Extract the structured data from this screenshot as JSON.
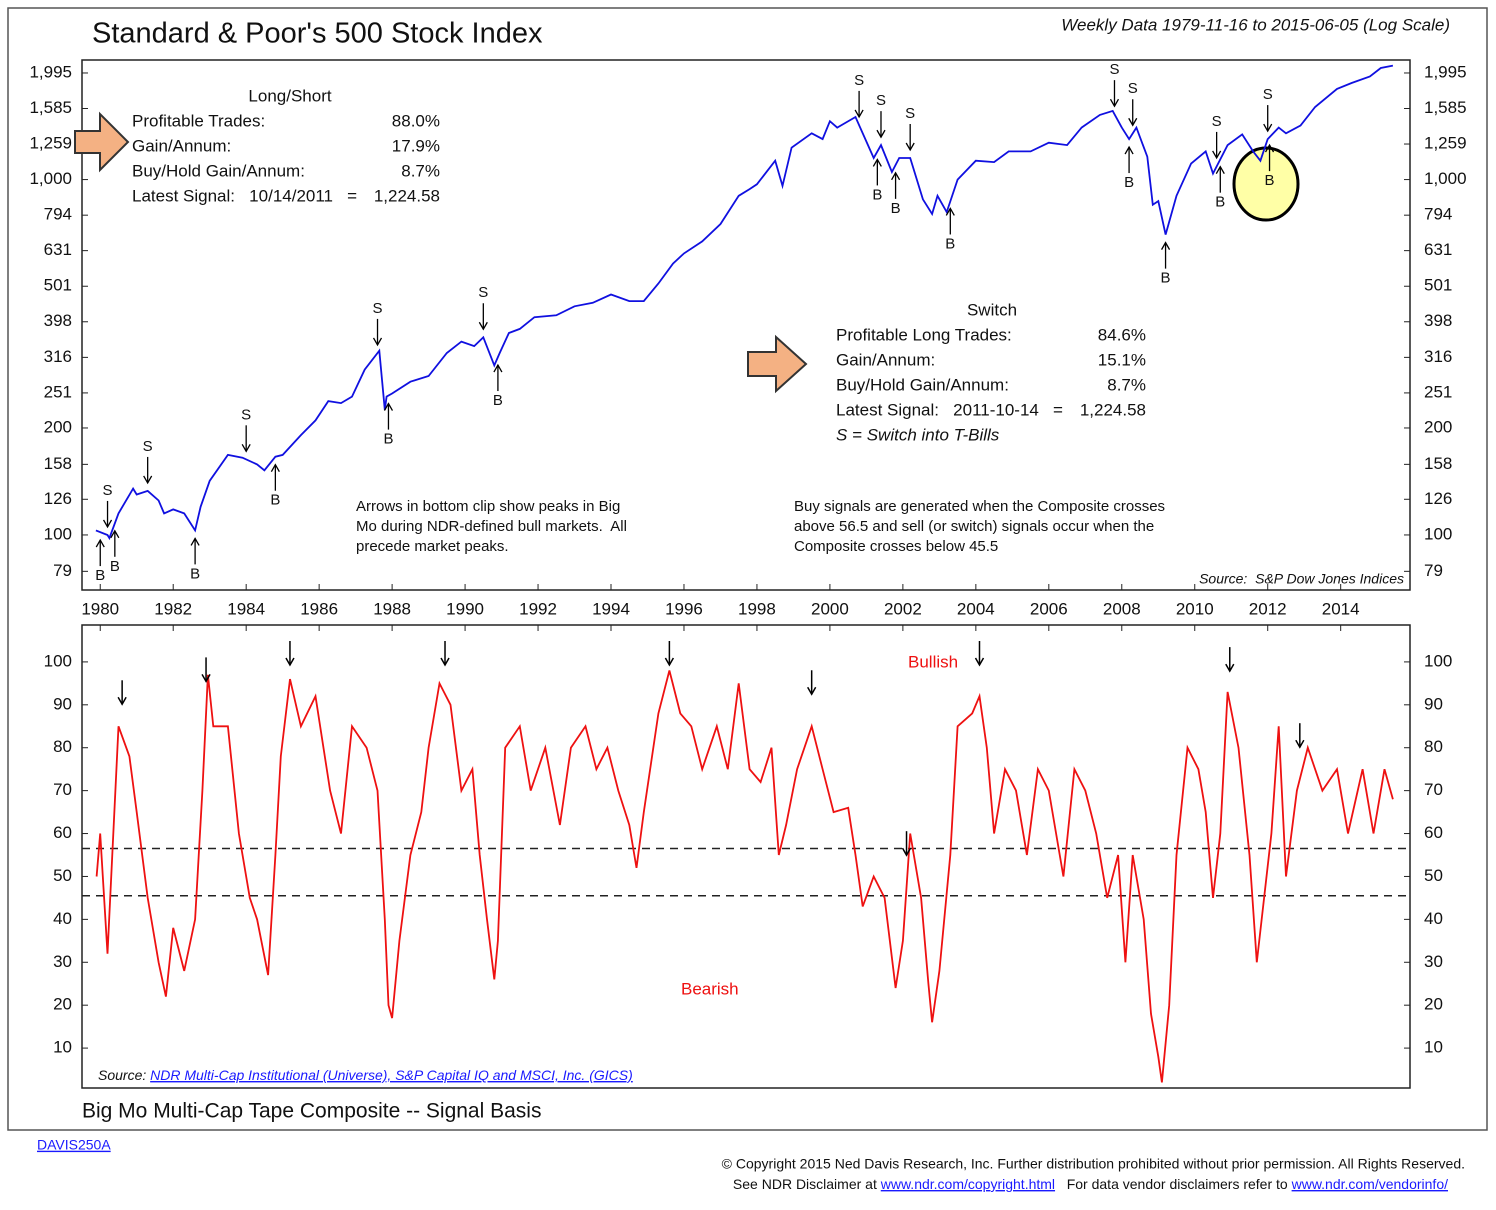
{
  "chart_data": [
    {
      "type": "line",
      "title": "Standard & Poor's 500 Stock Index",
      "subtitle": "Weekly Data 1979-11-16 to 2015-06-05 (Log Scale)",
      "log_scale": true,
      "color": "#1010e0",
      "xlim": [
        1979.5,
        2015.9
      ],
      "xticks": [
        1980,
        1982,
        1984,
        1986,
        1988,
        1990,
        1992,
        1994,
        1996,
        1998,
        2000,
        2002,
        2004,
        2006,
        2008,
        2010,
        2012,
        2014
      ],
      "ylim": [
        70,
        2170
      ],
      "yticks": [
        79,
        100,
        126,
        158,
        200,
        251,
        316,
        398,
        501,
        631,
        794,
        {
          "value": 1000,
          "label": "1,000"
        },
        {
          "value": 1259,
          "label": "1,259"
        },
        {
          "value": 1585,
          "label": "1,585"
        },
        {
          "value": 1995,
          "label": "1,995"
        }
      ],
      "x": [
        1979.88,
        1980.2,
        1980.25,
        1980.5,
        1980.9,
        1981.0,
        1981.3,
        1981.6,
        1981.75,
        1982.0,
        1982.3,
        1982.6,
        1982.75,
        1983.0,
        1983.5,
        1983.9,
        1984.3,
        1984.5,
        1984.8,
        1985.0,
        1985.5,
        1985.9,
        1986.25,
        1986.6,
        1986.9,
        1987.25,
        1987.65,
        1987.8,
        1987.85,
        1988.0,
        1988.5,
        1989.0,
        1989.5,
        1989.9,
        1990.25,
        1990.5,
        1990.8,
        1990.95,
        1991.2,
        1991.5,
        1991.9,
        1992.5,
        1993.0,
        1993.5,
        1994.0,
        1994.5,
        1994.9,
        1995.3,
        1995.7,
        1996.0,
        1996.5,
        1997.0,
        1997.5,
        1997.8,
        1998.0,
        1998.5,
        1998.7,
        1998.95,
        1999.5,
        1999.8,
        2000.0,
        2000.2,
        2000.7,
        2000.9,
        2001.2,
        2001.4,
        2001.7,
        2001.9,
        2002.2,
        2002.55,
        2002.8,
        2002.95,
        2003.2,
        2003.5,
        2004.0,
        2004.5,
        2004.9,
        2005.5,
        2006.0,
        2006.5,
        2006.9,
        2007.4,
        2007.75,
        2008.0,
        2008.2,
        2008.4,
        2008.7,
        2008.85,
        2009.0,
        2009.2,
        2009.5,
        2009.9,
        2010.3,
        2010.5,
        2010.9,
        2011.3,
        2011.6,
        2011.8,
        2012.0,
        2012.3,
        2012.5,
        2012.9,
        2013.3,
        2013.9,
        2014.3,
        2014.8,
        2015.1,
        2015.43
      ],
      "values": [
        103,
        100,
        98,
        115,
        135,
        130,
        133,
        125,
        115,
        118,
        115,
        103,
        120,
        142,
        168,
        165,
        158,
        152,
        166,
        168,
        191,
        210,
        238,
        235,
        245,
        292,
        330,
        225,
        245,
        250,
        270,
        280,
        325,
        350,
        340,
        360,
        300,
        325,
        370,
        380,
        410,
        415,
        440,
        450,
        475,
        455,
        455,
        510,
        580,
        620,
        670,
        750,
        900,
        940,
        970,
        1130,
        960,
        1230,
        1350,
        1300,
        1460,
        1400,
        1500,
        1350,
        1150,
        1250,
        1050,
        1150,
        1150,
        880,
        800,
        900,
        810,
        1000,
        1130,
        1120,
        1200,
        1200,
        1270,
        1250,
        1400,
        1520,
        1560,
        1400,
        1300,
        1400,
        1160,
        850,
        870,
        700,
        900,
        1110,
        1200,
        1040,
        1250,
        1340,
        1200,
        1130,
        1300,
        1400,
        1350,
        1420,
        1600,
        1800,
        1870,
        1950,
        2060,
        2092
      ],
      "signals": [
        {
          "x": 1980.0,
          "label": "B"
        },
        {
          "x": 1980.2,
          "label": "S"
        },
        {
          "x": 1980.4,
          "label": "B"
        },
        {
          "x": 1981.3,
          "label": "S"
        },
        {
          "x": 1982.6,
          "label": "B"
        },
        {
          "x": 1984.0,
          "label": "S"
        },
        {
          "x": 1984.8,
          "label": "B"
        },
        {
          "x": 1987.6,
          "label": "S"
        },
        {
          "x": 1987.9,
          "label": "B"
        },
        {
          "x": 1990.5,
          "label": "S"
        },
        {
          "x": 1990.9,
          "label": "B"
        },
        {
          "x": 2000.8,
          "label": "S"
        },
        {
          "x": 2001.3,
          "label": "B"
        },
        {
          "x": 2001.4,
          "label": "S"
        },
        {
          "x": 2001.8,
          "label": "B"
        },
        {
          "x": 2002.2,
          "label": "S"
        },
        {
          "x": 2003.3,
          "label": "B"
        },
        {
          "x": 2007.8,
          "label": "S"
        },
        {
          "x": 2008.2,
          "label": "B"
        },
        {
          "x": 2008.3,
          "label": "S"
        },
        {
          "x": 2009.2,
          "label": "B"
        },
        {
          "x": 2010.6,
          "label": "S"
        },
        {
          "x": 2010.7,
          "label": "B"
        },
        {
          "x": 2012.0,
          "label": "S"
        },
        {
          "x": 2012.05,
          "label": "B"
        }
      ],
      "stats_long_short": {
        "title": "Long/Short",
        "rows": [
          [
            "Profitable Trades:",
            "88.0%"
          ],
          [
            "Gain/Annum:",
            "17.9%"
          ],
          [
            "Buy/Hold Gain/Annum:",
            "8.7%"
          ],
          [
            "Latest Signal:   10/14/2011   =",
            "1,224.58"
          ]
        ]
      },
      "stats_switch": {
        "title": "Switch",
        "rows": [
          [
            "Profitable Long Trades:",
            "84.6%"
          ],
          [
            "Gain/Annum:",
            "15.1%"
          ],
          [
            "Buy/Hold Gain/Annum:",
            "8.7%"
          ],
          [
            "Latest Signal:   2011-10-14   =",
            "1,224.58"
          ]
        ],
        "footnote": "S = Switch into T-Bills"
      },
      "notes": [
        [
          "Arrows in bottom clip show peaks in Big",
          "Mo during NDR-defined bull markets.  All",
          "precede market peaks."
        ],
        [
          "Buy signals are generated when the Composite crosses",
          "above 56.5 and sell (or switch) signals occur when the",
          "Composite crosses below 45.5"
        ]
      ],
      "source": "Source:  S&P Dow Jones Indices"
    },
    {
      "type": "line",
      "title": "Big Mo Multi-Cap Tape Composite -- Signal Basis",
      "color": "#ee1111",
      "xlim": [
        1979.5,
        2015.9
      ],
      "ylim": [
        0.7,
        108.6
      ],
      "yticks": [
        10,
        20,
        30,
        40,
        50,
        60,
        70,
        80,
        90,
        100
      ],
      "reference_lines": [
        56.5,
        45.5
      ],
      "x": [
        1979.9,
        1980.0,
        1980.2,
        1980.5,
        1980.8,
        1981.0,
        1981.3,
        1981.6,
        1981.8,
        1982.0,
        1982.3,
        1982.6,
        1982.8,
        1982.95,
        1983.1,
        1983.5,
        1983.8,
        1984.1,
        1984.3,
        1984.6,
        1984.8,
        1984.95,
        1985.2,
        1985.5,
        1985.9,
        1986.3,
        1986.6,
        1986.9,
        1987.3,
        1987.6,
        1987.8,
        1987.9,
        1988.0,
        1988.2,
        1988.5,
        1988.8,
        1989.0,
        1989.3,
        1989.6,
        1989.9,
        1990.2,
        1990.4,
        1990.6,
        1990.8,
        1990.9,
        1991.1,
        1991.5,
        1991.8,
        1992.2,
        1992.6,
        1992.9,
        1993.3,
        1993.6,
        1993.9,
        1994.2,
        1994.5,
        1994.7,
        1994.9,
        1995.3,
        1995.6,
        1995.9,
        1996.2,
        1996.5,
        1996.9,
        1997.2,
        1997.5,
        1997.8,
        1998.1,
        1998.4,
        1998.6,
        1998.8,
        1999.1,
        1999.5,
        1999.8,
        2000.1,
        2000.5,
        2000.7,
        2000.9,
        2001.2,
        2001.5,
        2001.8,
        2002.0,
        2002.2,
        2002.5,
        2002.7,
        2002.8,
        2003.0,
        2003.3,
        2003.5,
        2003.9,
        2004.1,
        2004.3,
        2004.5,
        2004.8,
        2005.1,
        2005.4,
        2005.7,
        2006.0,
        2006.4,
        2006.7,
        2007.0,
        2007.3,
        2007.6,
        2007.9,
        2008.1,
        2008.3,
        2008.6,
        2008.8,
        2009.0,
        2009.1,
        2009.3,
        2009.5,
        2009.8,
        2010.1,
        2010.3,
        2010.5,
        2010.7,
        2010.9,
        2011.2,
        2011.5,
        2011.7,
        2011.9,
        2012.1,
        2012.3,
        2012.5,
        2012.8,
        2013.1,
        2013.5,
        2013.9,
        2014.2,
        2014.6,
        2014.9,
        2015.2,
        2015.43
      ],
      "values": [
        50,
        60,
        32,
        85,
        78,
        65,
        45,
        30,
        22,
        38,
        28,
        40,
        70,
        97,
        85,
        85,
        60,
        45,
        40,
        27,
        55,
        78,
        96,
        85,
        92,
        70,
        60,
        85,
        80,
        70,
        40,
        20,
        17,
        35,
        55,
        65,
        80,
        95,
        90,
        70,
        75,
        55,
        40,
        26,
        35,
        80,
        85,
        70,
        80,
        62,
        80,
        85,
        75,
        80,
        70,
        62,
        52,
        65,
        88,
        98,
        88,
        85,
        75,
        85,
        75,
        95,
        75,
        72,
        80,
        55,
        62,
        75,
        85,
        75,
        65,
        66,
        55,
        43,
        50,
        45,
        24,
        35,
        60,
        45,
        25,
        16,
        28,
        55,
        85,
        88,
        92,
        80,
        60,
        75,
        70,
        55,
        75,
        70,
        50,
        75,
        70,
        60,
        45,
        55,
        30,
        55,
        40,
        18,
        8,
        2,
        20,
        55,
        80,
        75,
        65,
        45,
        60,
        93,
        80,
        55,
        30,
        45,
        60,
        85,
        50,
        70,
        80,
        70,
        75,
        60,
        75,
        60,
        75,
        68
      ],
      "peak_arrows": [
        1980.6,
        1982.9,
        1985.2,
        1989.45,
        1995.6,
        1999.5,
        2002.1,
        2004.1,
        2010.96,
        2012.88
      ],
      "label_bullish": "Bullish",
      "label_bearish": "Bearish",
      "source_label": "Source:",
      "source_link": "NDR Multi-Cap Institutional (Universe), S&P Capital IQ and MSCI, Inc. (GICS)"
    }
  ],
  "footer": {
    "code": "DAVIS250A",
    "copyright": "© Copyright 2015 Ned Davis Research, Inc. Further distribution prohibited without prior permission. All Rights Reserved.",
    "disclaimer_text": "See NDR Disclaimer at ",
    "disclaimer_link": "www.ndr.com/copyright.html",
    "vendor_text": "   For data vendor disclaimers refer to ",
    "vendor_link": "www.ndr.com/vendorinfo/"
  }
}
